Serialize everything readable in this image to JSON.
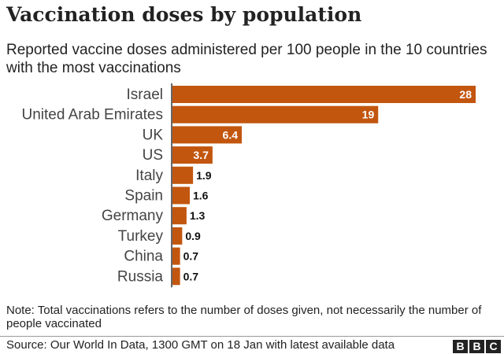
{
  "chart_data": {
    "type": "bar",
    "orientation": "horizontal",
    "title": "Vaccination doses by population",
    "subtitle": "Reported vaccine doses administered per 100 people in the 10 countries with the most vaccinations",
    "categories": [
      "Israel",
      "United Arab Emirates",
      "UK",
      "US",
      "Italy",
      "Spain",
      "Germany",
      "Turkey",
      "China",
      "Russia"
    ],
    "values": [
      28,
      19,
      6.4,
      3.7,
      1.9,
      1.6,
      1.3,
      0.9,
      0.7,
      0.7
    ],
    "value_labels": [
      "28",
      "19",
      "6.4",
      "3.7",
      "1.9",
      "1.6",
      "1.3",
      "0.9",
      "0.7",
      "0.7"
    ],
    "xlim": [
      0,
      28
    ],
    "grid": false,
    "bar_color": "#c2560f"
  },
  "note": "Note: Total vaccinations refers to the number of doses given, not necessarily the number of people vaccinated",
  "source": "Source: Our World In Data, 1300 GMT on 18 Jan with latest available data",
  "logo": [
    "B",
    "B",
    "C"
  ]
}
